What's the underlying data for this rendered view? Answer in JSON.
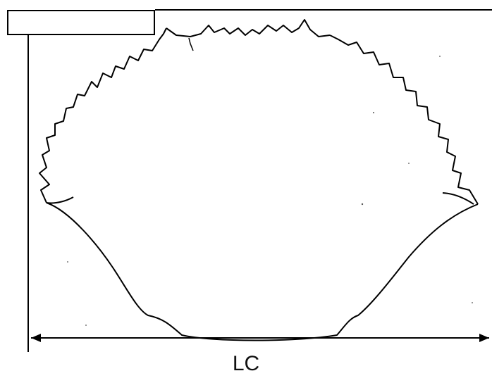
{
  "figure": {
    "dimension_label": "LC",
    "label_box_text": "",
    "stroke_color": "#000000",
    "background_color": "#ffffff"
  }
}
